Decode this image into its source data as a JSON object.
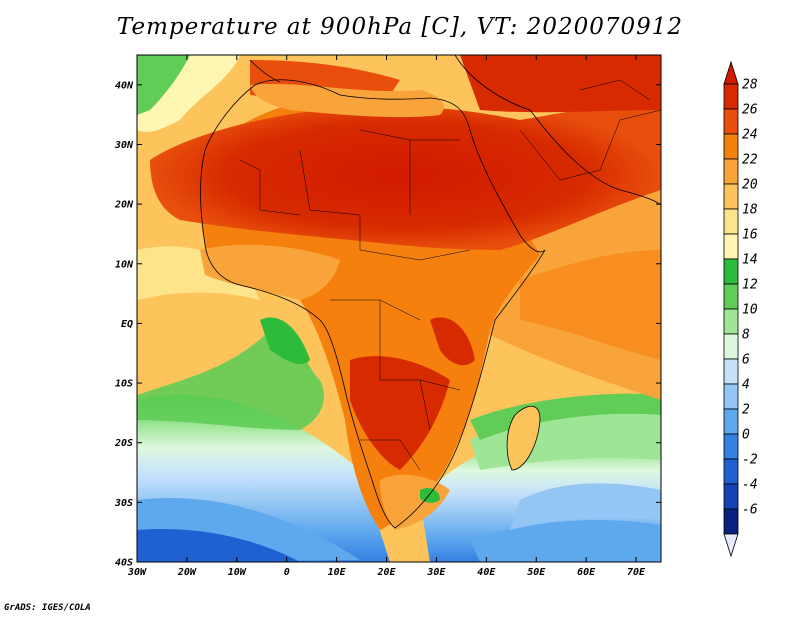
{
  "title": "Temperature at 900hPa [C], VT: 2020070912",
  "credit": "GrADS: IGES/COLA",
  "map": {
    "lon_range": [
      -30,
      75
    ],
    "lat_range": [
      -40,
      45
    ],
    "lon_ticks": [
      {
        "value": -30,
        "label": "30W"
      },
      {
        "value": -20,
        "label": "20W"
      },
      {
        "value": -10,
        "label": "10W"
      },
      {
        "value": 0,
        "label": "0"
      },
      {
        "value": 10,
        "label": "10E"
      },
      {
        "value": 20,
        "label": "20E"
      },
      {
        "value": 30,
        "label": "30E"
      },
      {
        "value": 40,
        "label": "40E"
      },
      {
        "value": 50,
        "label": "50E"
      },
      {
        "value": 60,
        "label": "60E"
      },
      {
        "value": 70,
        "label": "70E"
      }
    ],
    "lat_ticks": [
      {
        "value": 40,
        "label": "40N"
      },
      {
        "value": 30,
        "label": "30N"
      },
      {
        "value": 20,
        "label": "20N"
      },
      {
        "value": 10,
        "label": "10N"
      },
      {
        "value": 0,
        "label": "EQ"
      },
      {
        "value": -10,
        "label": "10S"
      },
      {
        "value": -20,
        "label": "20S"
      },
      {
        "value": -30,
        "label": "30S"
      },
      {
        "value": -40,
        "label": "40S"
      }
    ]
  },
  "colorbar": {
    "levels": [
      "28",
      "26",
      "24",
      "22",
      "20",
      "18",
      "16",
      "14",
      "12",
      "10",
      "8",
      "6",
      "4",
      "2",
      "0",
      "-2",
      "-4",
      "-6"
    ],
    "colors": [
      "#d72a00",
      "#e84f0c",
      "#f5800e",
      "#f9a43b",
      "#fcc45a",
      "#fde38a",
      "#fff6b4",
      "#2dbb3c",
      "#61cd56",
      "#9ee596",
      "#def8df",
      "#c6e2fb",
      "#93c6f4",
      "#5ea8ee",
      "#3580e3",
      "#1f60d2",
      "#1542b4",
      "#0b207c",
      "#232399"
    ],
    "top_color": "#d21a00",
    "bottom_color": "#e9eaff"
  }
}
